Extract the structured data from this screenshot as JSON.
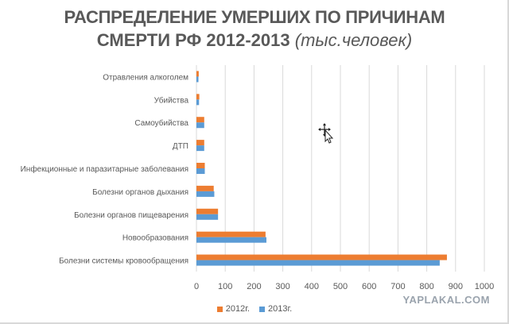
{
  "chart_data": {
    "type": "bar",
    "orientation": "horizontal",
    "title_line1": "РАСПРЕДЕЛЕНИЕ УМЕРШИХ ПО ПРИЧИНАМ",
    "title_line2": "СМЕРТИ РФ 2012-2013",
    "title_unit": "(тыс.человек)",
    "categories": [
      "Отравления алкоголем",
      "Убийства",
      "Самоубийства",
      "ДТП",
      "Инфекционные и паразитарные заболевания",
      "Болезни органов дыхания",
      "Болезни органов пищеварения",
      "Новообразования",
      "Болезни системы кровообращения"
    ],
    "series": [
      {
        "name": "2012г.",
        "color": "#ED7D31",
        "values": [
          8,
          10,
          27,
          27,
          29,
          60,
          75,
          240,
          870
        ]
      },
      {
        "name": "2013г.",
        "color": "#5B9BD5",
        "values": [
          7,
          9,
          27,
          27,
          29,
          62,
          75,
          243,
          845
        ]
      }
    ],
    "xlim": [
      0,
      1000
    ],
    "xticks": [
      0,
      100,
      200,
      300,
      400,
      500,
      600,
      700,
      800,
      900,
      1000
    ],
    "grid": true,
    "legend_position": "bottom"
  },
  "watermark": "YAPLAKAL.COM"
}
